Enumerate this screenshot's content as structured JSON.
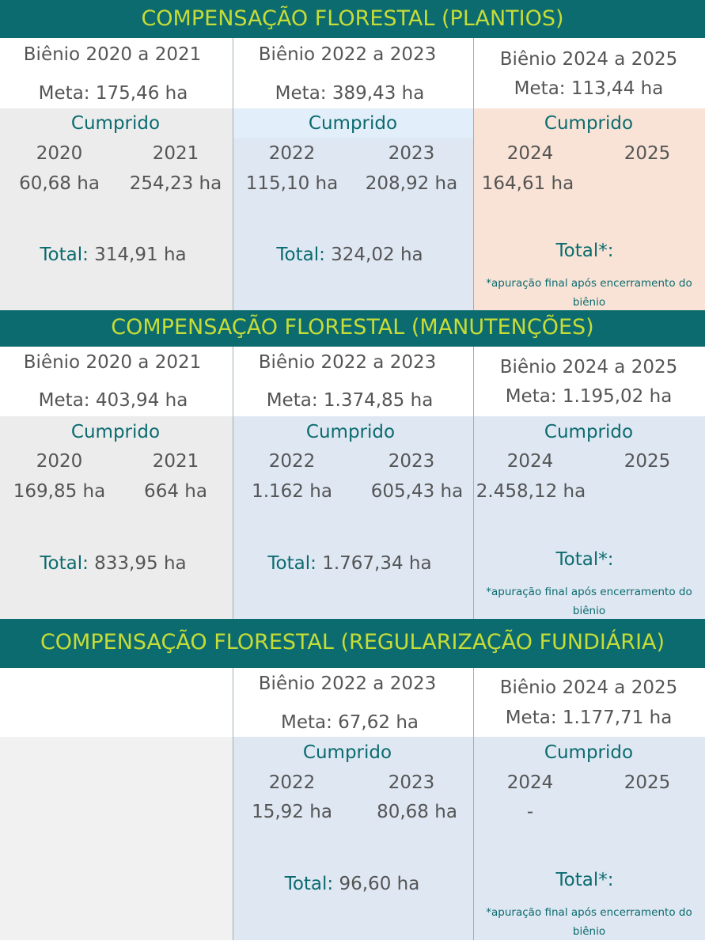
{
  "sections": [
    {
      "title": "COMPENSAÇÃO FLORESTAL (PLANTIOS)",
      "columns": [
        {
          "bienio": "Biênio 2020 a 2021",
          "meta": "Meta: 175,46 ha",
          "cumprido": "Cumprido",
          "year1": "2020",
          "year2": "2021",
          "val1": "60,68 ha",
          "val2": "254,23 ha",
          "total_label": "Total:",
          "total_value": "314,91 ha"
        },
        {
          "bienio": "Biênio 2022 a 2023",
          "meta": "Meta: 389,43 ha",
          "cumprido": "Cumprido",
          "year1": "2022",
          "year2": "2023",
          "val1": "115,10 ha",
          "val2": "208,92 ha",
          "total_label": "Total:",
          "total_value": "324,02 ha"
        },
        {
          "bienio": "Biênio 2024 a 2025",
          "meta": "Meta: 113,44 ha",
          "cumprido": "Cumprido",
          "year1": "2024",
          "year2": "2025",
          "val1": "164,61 ha",
          "total_label": "Total*:",
          "note": "*apuração final após encerramento do biênio"
        }
      ]
    },
    {
      "title": "COMPENSAÇÃO FLORESTAL (MANUTENÇÕES)",
      "columns": [
        {
          "bienio": "Biênio 2020 a 2021",
          "meta": "Meta: 403,94 ha",
          "cumprido": "Cumprido",
          "year1": "2020",
          "year2": "2021",
          "val1": "169,85 ha",
          "val2": "664 ha",
          "total_label": "Total:",
          "total_value": "833,95 ha"
        },
        {
          "bienio": "Biênio 2022 a 2023",
          "meta": "Meta: 1.374,85 ha",
          "cumprido": "Cumprido",
          "year1": "2022",
          "year2": "2023",
          "val1": "1.162 ha",
          "val2": "605,43 ha",
          "total_label": "Total:",
          "total_value": "1.767,34 ha"
        },
        {
          "bienio": "Biênio 2024 a 2025",
          "meta": "Meta: 1.195,02 ha",
          "cumprido": "Cumprido",
          "year1": "2024",
          "year2": "2025",
          "val1": "2.458,12 ha",
          "total_label": "Total*:",
          "note": "*apuração final após encerramento do biênio"
        }
      ]
    },
    {
      "title": "COMPENSAÇÃO FLORESTAL (REGULARIZAÇÃO FUNDIÁRIA)",
      "columns": [
        {},
        {
          "bienio": "Biênio 2022 a 2023",
          "meta": "Meta: 67,62 ha",
          "cumprido": "Cumprido",
          "year1": "2022",
          "year2": "2023",
          "val1": "15,92 ha",
          "val2": "80,68 ha",
          "total_label": "Total:",
          "total_value": "96,60 ha"
        },
        {
          "bienio": "Biênio 2024 a 2025",
          "meta": "Meta: 1.177,71 ha",
          "cumprido": "Cumprido",
          "year1": "2024",
          "year2": "2025",
          "val1": "-",
          "total_label": "Total*:",
          "note": "*apuração final após encerramento do biênio"
        }
      ]
    }
  ],
  "colors": {
    "band": "#0b6b6f",
    "band_text": "#c6dc37",
    "gray": "#ececec",
    "blue": "#dee7f2",
    "peach": "#f9e3d6",
    "teal": "#0b6b6f"
  }
}
